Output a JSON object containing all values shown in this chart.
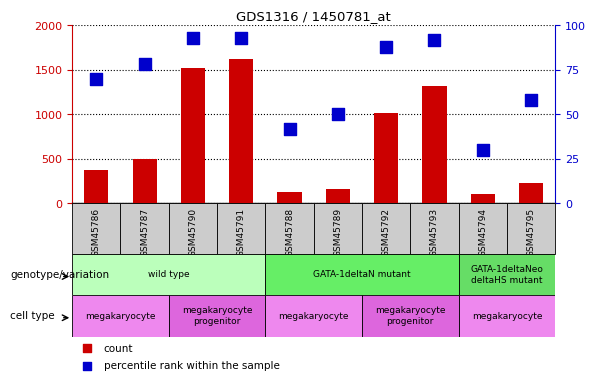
{
  "title": "GDS1316 / 1450781_at",
  "samples": [
    "GSM45786",
    "GSM45787",
    "GSM45790",
    "GSM45791",
    "GSM45788",
    "GSM45789",
    "GSM45792",
    "GSM45793",
    "GSM45794",
    "GSM45795"
  ],
  "counts": [
    380,
    500,
    1520,
    1620,
    130,
    160,
    1020,
    1320,
    100,
    230
  ],
  "percentiles": [
    70,
    78,
    93,
    93,
    42,
    50,
    88,
    92,
    30,
    58
  ],
  "count_color": "#cc0000",
  "percentile_color": "#0000cc",
  "ylim_left": [
    0,
    2000
  ],
  "ylim_right": [
    0,
    100
  ],
  "yticks_left": [
    0,
    500,
    1000,
    1500,
    2000
  ],
  "yticks_right": [
    0,
    25,
    50,
    75,
    100
  ],
  "genotype_groups": [
    {
      "label": "wild type",
      "start": 0,
      "end": 3,
      "color": "#bbffbb"
    },
    {
      "label": "GATA-1deltaN mutant",
      "start": 4,
      "end": 7,
      "color": "#66ee66"
    },
    {
      "label": "GATA-1deltaNeo\ndeltaHS mutant",
      "start": 8,
      "end": 9,
      "color": "#66dd66"
    }
  ],
  "cell_type_groups": [
    {
      "label": "megakaryocyte",
      "start": 0,
      "end": 1,
      "color": "#ee88ee"
    },
    {
      "label": "megakaryocyte\nprogenitor",
      "start": 2,
      "end": 3,
      "color": "#dd66dd"
    },
    {
      "label": "megakaryocyte",
      "start": 4,
      "end": 5,
      "color": "#ee88ee"
    },
    {
      "label": "megakaryocyte\nprogenitor",
      "start": 6,
      "end": 7,
      "color": "#dd66dd"
    },
    {
      "label": "megakaryocyte",
      "start": 8,
      "end": 9,
      "color": "#ee88ee"
    }
  ],
  "left_label_genotype": "genotype/variation",
  "left_label_celltype": "cell type",
  "legend_count": "count",
  "legend_percentile": "percentile rank within the sample",
  "background_color": "#ffffff",
  "tick_label_color_left": "#cc0000",
  "tick_label_color_right": "#0000cc",
  "sample_box_color": "#cccccc",
  "bar_width": 0.5,
  "percentile_marker_size": 7
}
